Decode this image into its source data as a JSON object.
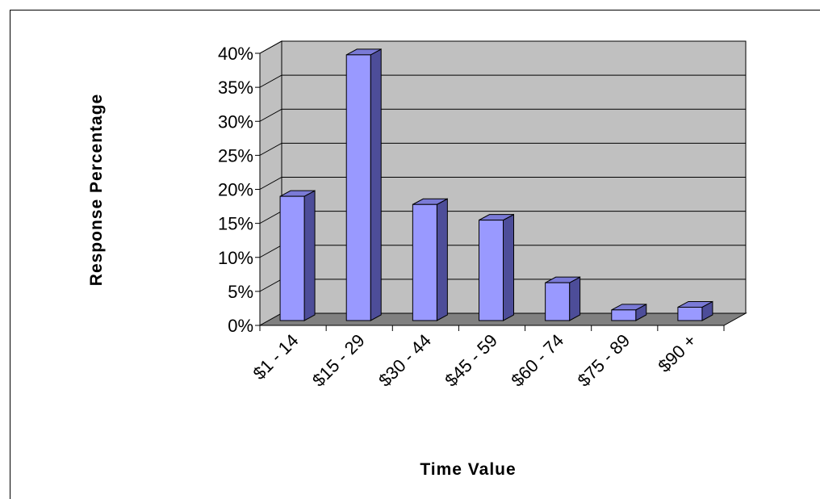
{
  "chart_data": {
    "type": "bar",
    "style": "3d-column",
    "title": "",
    "xlabel": "Time Value",
    "ylabel": "Response Percentage",
    "categories": [
      "$1 - 14",
      "$15 - 29",
      "$30 - 44",
      "$45 - 59",
      "$60 - 74",
      "$75 - 89",
      "$90 +"
    ],
    "values": [
      18.5,
      39.3,
      17.3,
      15.0,
      5.8,
      1.8,
      2.2
    ],
    "value_unit": "%",
    "ylim": [
      0,
      40
    ],
    "yticks": [
      "0%",
      "5%",
      "10%",
      "15%",
      "20%",
      "25%",
      "30%",
      "35%",
      "40%"
    ],
    "grid": true,
    "legend": "none",
    "colors": {
      "bar_front": "#9999ff",
      "bar_top": "#7a7ad6",
      "bar_side": "#4d4d99",
      "bar_edge": "#000000",
      "back_wall": "#c0c0c0",
      "side_wall": "#c0c0c0",
      "floor": "#808080",
      "gridline": "#000000"
    }
  }
}
